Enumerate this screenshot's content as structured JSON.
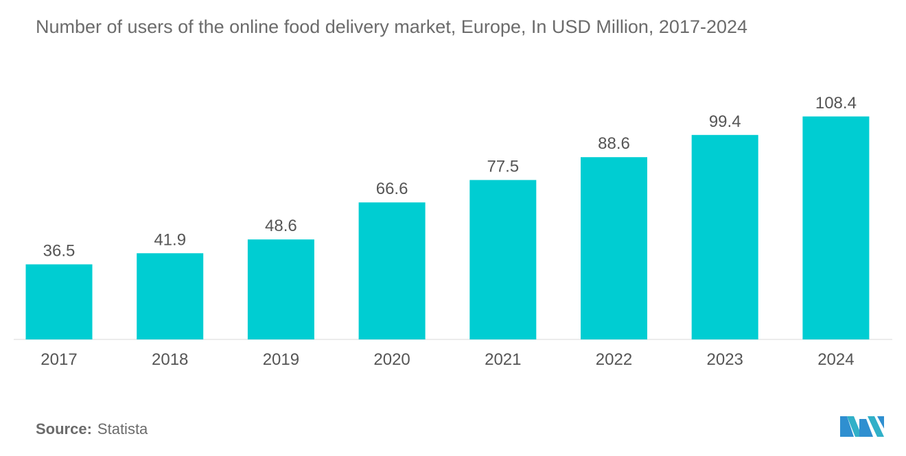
{
  "title": "Number of users of the online food delivery market, Europe, In USD Million, 2017-2024",
  "source": {
    "label": "Source:",
    "value": "Statista"
  },
  "logo_icon": "mordor-intelligence-logo",
  "colors": {
    "bar": "#00cdd2",
    "text": "#555555",
    "axis": "#d9d9d9"
  },
  "chart_data": {
    "type": "bar",
    "title": "Number of users of the online food delivery market, Europe, In USD Million, 2017-2024",
    "xlabel": "",
    "ylabel": "",
    "categories": [
      "2017",
      "2018",
      "2019",
      "2020",
      "2021",
      "2022",
      "2023",
      "2024"
    ],
    "values": [
      36.5,
      41.9,
      48.6,
      66.6,
      77.5,
      88.6,
      99.4,
      108.4
    ],
    "data_labels": [
      "36.5",
      "41.9",
      "48.6",
      "66.6",
      "77.5",
      "88.6",
      "99.4",
      "108.4"
    ],
    "ylim": [
      0,
      115
    ],
    "grid": false,
    "legend": "none"
  }
}
